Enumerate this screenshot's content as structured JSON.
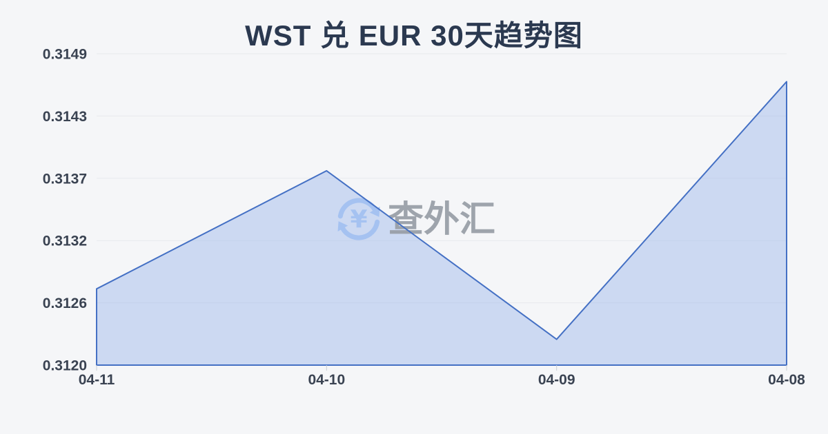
{
  "header": {
    "title": "WST 兑 EUR 30天趋势图"
  },
  "watermark": {
    "text": "查外汇",
    "currency_symbol": "¥",
    "icon": "currency-exchange-icon",
    "icon_color": "#a5c2f1",
    "text_color": "#9aa0a8"
  },
  "chart_data": {
    "type": "area",
    "title": "WST 兑 EUR 30天趋势图",
    "categories": [
      "04-11",
      "04-10",
      "04-09",
      "04-08"
    ],
    "values": [
      0.31271,
      0.31381,
      0.31224,
      0.31464
    ],
    "y_tick_labels": [
      "0.3149",
      "0.3143",
      "0.3137",
      "0.3132",
      "0.3126",
      "0.3120"
    ],
    "ylim": [
      0.312,
      0.3149
    ],
    "xlabel": "",
    "ylabel": "",
    "grid": true,
    "legend_position": "none",
    "colors": {
      "line": "#4470c4",
      "fill": "rgba(163,188,235,0.5)",
      "grid": "#e7e9ed",
      "axis_label": "#3a4352",
      "tick": "#c9cdd4",
      "title": "#2b3950",
      "background": "#f5f6f8"
    }
  }
}
